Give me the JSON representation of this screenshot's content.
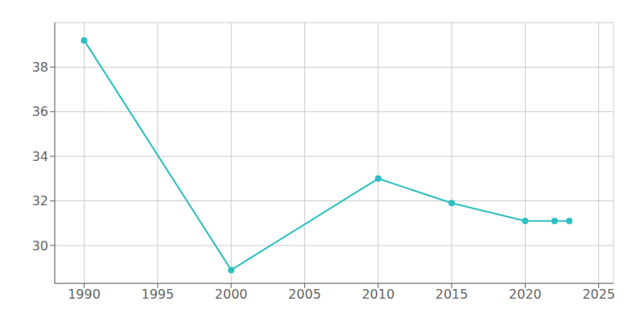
{
  "chart_data": {
    "type": "line",
    "x": [
      1990,
      2000,
      2010,
      2015,
      2020,
      2022,
      2023
    ],
    "values": [
      39.2,
      28.9,
      33.0,
      31.9,
      31.1,
      31.1,
      31.1
    ],
    "color": "#2BBFC0",
    "marker": "circle",
    "xlim": [
      1988,
      2026
    ],
    "ylim": [
      28.3,
      40.0
    ],
    "xticks": [
      1990,
      1995,
      2000,
      2005,
      2010,
      2015,
      2020,
      2025
    ],
    "yticks": [
      30,
      32,
      34,
      36,
      38
    ],
    "grid": true
  }
}
